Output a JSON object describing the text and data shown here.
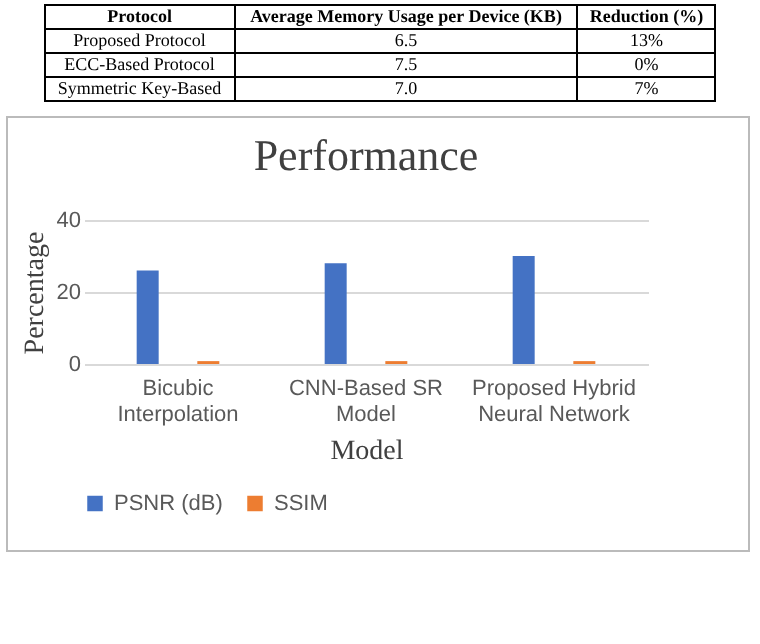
{
  "chart_data": [
    {
      "type": "other",
      "categories": [
        "Protocol",
        "Average Memory Usage per Device (KB)",
        "Reduction (%)"
      ],
      "y_categories": [
        "Proposed Protocol",
        "ECC-Based Protocol",
        "Symmetric Key-Based"
      ],
      "cell_labels": [
        [
          "6.5",
          "13%"
        ],
        [
          "7.5",
          "0%"
        ],
        [
          "7.0",
          "7%"
        ]
      ]
    },
    {
      "type": "bar",
      "title": "Performance",
      "xlabel": "Model",
      "ylabel": "Percentage",
      "categories": [
        "Bicubic Interpolation",
        "CNN-Based SR Model",
        "Proposed Hybrid Neural Network"
      ],
      "series": [
        {
          "name": "PSNR (dB)",
          "color": "#4472c4",
          "values": [
            26,
            28,
            30
          ]
        },
        {
          "name": "SSIM",
          "color": "#ed7d31",
          "values": [
            0.8,
            0.8,
            0.8
          ]
        }
      ],
      "ylim": [
        0,
        40
      ],
      "yticks": [
        0,
        20,
        40
      ],
      "grid": "y",
      "legend": "bottom"
    }
  ]
}
